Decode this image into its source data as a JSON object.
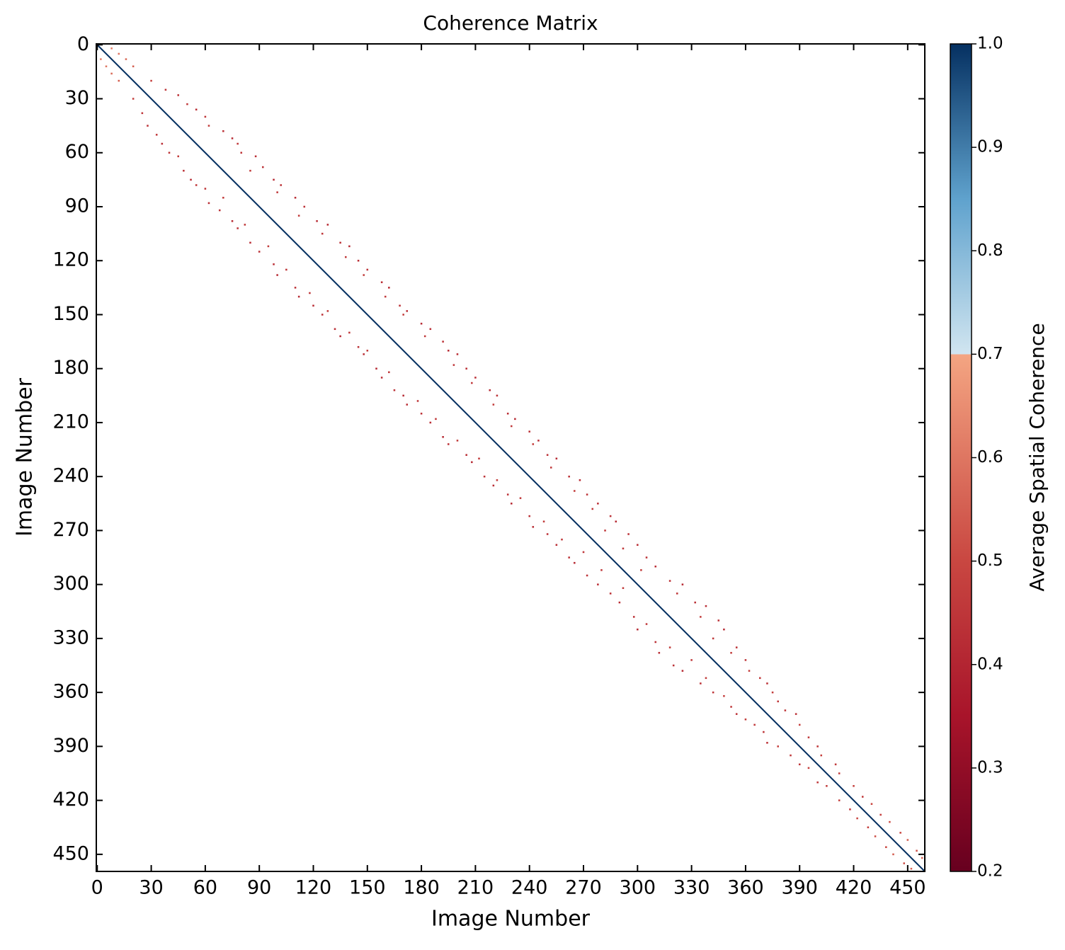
{
  "chart_data": {
    "type": "heatmap",
    "title": "Coherence Matrix",
    "xlabel": "Image Number",
    "ylabel": "Image Number",
    "xlim": [
      -0.5,
      459.5
    ],
    "ylim": [
      459.5,
      -0.5
    ],
    "xticks": [
      0,
      30,
      60,
      90,
      120,
      150,
      180,
      210,
      240,
      270,
      300,
      330,
      360,
      390,
      420,
      450
    ],
    "yticks": [
      0,
      30,
      60,
      90,
      120,
      150,
      180,
      210,
      240,
      270,
      300,
      330,
      360,
      390,
      420,
      450
    ],
    "symmetric": true,
    "diagonal": {
      "from": 0,
      "to": 459,
      "value": 1.0
    },
    "cells": [
      [
        2,
        8,
        0.62
      ],
      [
        5,
        12,
        0.6
      ],
      [
        8,
        16,
        0.58
      ],
      [
        12,
        20,
        0.55
      ],
      [
        20,
        30,
        0.48
      ],
      [
        25,
        38,
        0.45
      ],
      [
        28,
        45,
        0.44
      ],
      [
        33,
        50,
        0.46
      ],
      [
        36,
        55,
        0.43
      ],
      [
        40,
        60,
        0.45
      ],
      [
        45,
        62,
        0.47
      ],
      [
        48,
        70,
        0.44
      ],
      [
        52,
        75,
        0.42
      ],
      [
        55,
        78,
        0.46
      ],
      [
        60,
        80,
        0.45
      ],
      [
        62,
        88,
        0.43
      ],
      [
        68,
        92,
        0.44
      ],
      [
        70,
        85,
        0.47
      ],
      [
        75,
        98,
        0.42
      ],
      [
        78,
        102,
        0.44
      ],
      [
        82,
        100,
        0.46
      ],
      [
        85,
        110,
        0.43
      ],
      [
        90,
        115,
        0.44
      ],
      [
        95,
        112,
        0.47
      ],
      [
        98,
        122,
        0.43
      ],
      [
        100,
        128,
        0.42
      ],
      [
        105,
        125,
        0.45
      ],
      [
        110,
        135,
        0.44
      ],
      [
        112,
        140,
        0.42
      ],
      [
        118,
        138,
        0.46
      ],
      [
        120,
        145,
        0.43
      ],
      [
        125,
        150,
        0.44
      ],
      [
        128,
        148,
        0.47
      ],
      [
        132,
        158,
        0.43
      ],
      [
        135,
        162,
        0.42
      ],
      [
        140,
        160,
        0.46
      ],
      [
        145,
        168,
        0.44
      ],
      [
        148,
        172,
        0.43
      ],
      [
        150,
        170,
        0.47
      ],
      [
        155,
        180,
        0.42
      ],
      [
        158,
        185,
        0.43
      ],
      [
        162,
        182,
        0.46
      ],
      [
        165,
        192,
        0.44
      ],
      [
        170,
        195,
        0.42
      ],
      [
        172,
        200,
        0.43
      ],
      [
        178,
        198,
        0.46
      ],
      [
        180,
        205,
        0.44
      ],
      [
        185,
        210,
        0.43
      ],
      [
        188,
        208,
        0.46
      ],
      [
        192,
        218,
        0.42
      ],
      [
        195,
        222,
        0.44
      ],
      [
        200,
        220,
        0.47
      ],
      [
        205,
        228,
        0.43
      ],
      [
        208,
        232,
        0.42
      ],
      [
        212,
        230,
        0.46
      ],
      [
        215,
        240,
        0.44
      ],
      [
        220,
        245,
        0.43
      ],
      [
        222,
        242,
        0.47
      ],
      [
        228,
        250,
        0.44
      ],
      [
        230,
        255,
        0.42
      ],
      [
        235,
        252,
        0.46
      ],
      [
        240,
        262,
        0.44
      ],
      [
        242,
        268,
        0.43
      ],
      [
        248,
        265,
        0.47
      ],
      [
        250,
        272,
        0.44
      ],
      [
        255,
        278,
        0.43
      ],
      [
        258,
        275,
        0.46
      ],
      [
        262,
        285,
        0.44
      ],
      [
        265,
        288,
        0.42
      ],
      [
        270,
        282,
        0.46
      ],
      [
        272,
        295,
        0.44
      ],
      [
        278,
        300,
        0.43
      ],
      [
        280,
        292,
        0.46
      ],
      [
        285,
        305,
        0.44
      ],
      [
        290,
        310,
        0.43
      ],
      [
        292,
        302,
        0.47
      ],
      [
        298,
        318,
        0.44
      ],
      [
        300,
        325,
        0.42
      ],
      [
        305,
        322,
        0.46
      ],
      [
        310,
        332,
        0.44
      ],
      [
        312,
        338,
        0.43
      ],
      [
        318,
        335,
        0.47
      ],
      [
        320,
        345,
        0.44
      ],
      [
        325,
        348,
        0.42
      ],
      [
        330,
        342,
        0.46
      ],
      [
        335,
        355,
        0.44
      ],
      [
        338,
        352,
        0.47
      ],
      [
        342,
        360,
        0.45
      ],
      [
        348,
        362,
        0.48
      ],
      [
        352,
        368,
        0.46
      ],
      [
        355,
        372,
        0.44
      ],
      [
        360,
        375,
        0.47
      ],
      [
        365,
        378,
        0.46
      ],
      [
        370,
        382,
        0.45
      ],
      [
        372,
        388,
        0.44
      ],
      [
        378,
        390,
        0.48
      ],
      [
        385,
        395,
        0.46
      ],
      [
        390,
        400,
        0.45
      ],
      [
        395,
        402,
        0.48
      ],
      [
        400,
        410,
        0.46
      ],
      [
        405,
        412,
        0.47
      ],
      [
        412,
        420,
        0.48
      ],
      [
        418,
        425,
        0.46
      ],
      [
        422,
        430,
        0.5
      ],
      [
        428,
        435,
        0.48
      ],
      [
        432,
        440,
        0.52
      ],
      [
        438,
        446,
        0.5
      ],
      [
        442,
        450,
        0.55
      ],
      [
        448,
        455,
        0.52
      ],
      [
        452,
        458,
        0.56
      ]
    ],
    "colorbar": {
      "label": "Average Spatial Coherence",
      "lim": [
        0.2,
        1.0
      ],
      "ticks": [
        {
          "value": 0.2,
          "label": "0.2"
        },
        {
          "value": 0.3,
          "label": "0.3"
        },
        {
          "value": 0.4,
          "label": "0.4"
        },
        {
          "value": 0.5,
          "label": "0.5"
        },
        {
          "value": 0.6,
          "label": "0.6"
        },
        {
          "value": 0.7,
          "label": "0.7"
        },
        {
          "value": 0.8,
          "label": "0.8"
        },
        {
          "value": 0.9,
          "label": "0.9"
        },
        {
          "value": 1.0,
          "label": "1.0"
        }
      ],
      "colormap": [
        {
          "value": 0.2,
          "color": "#67001f"
        },
        {
          "value": 0.35,
          "color": "#a8142a"
        },
        {
          "value": 0.5,
          "color": "#c94741"
        },
        {
          "value": 0.7,
          "color": "#f4a582"
        },
        {
          "value": 0.7,
          "color": "#d1e5f0"
        },
        {
          "value": 0.85,
          "color": "#5fa2cd"
        },
        {
          "value": 1.0,
          "color": "#053061"
        }
      ]
    }
  }
}
